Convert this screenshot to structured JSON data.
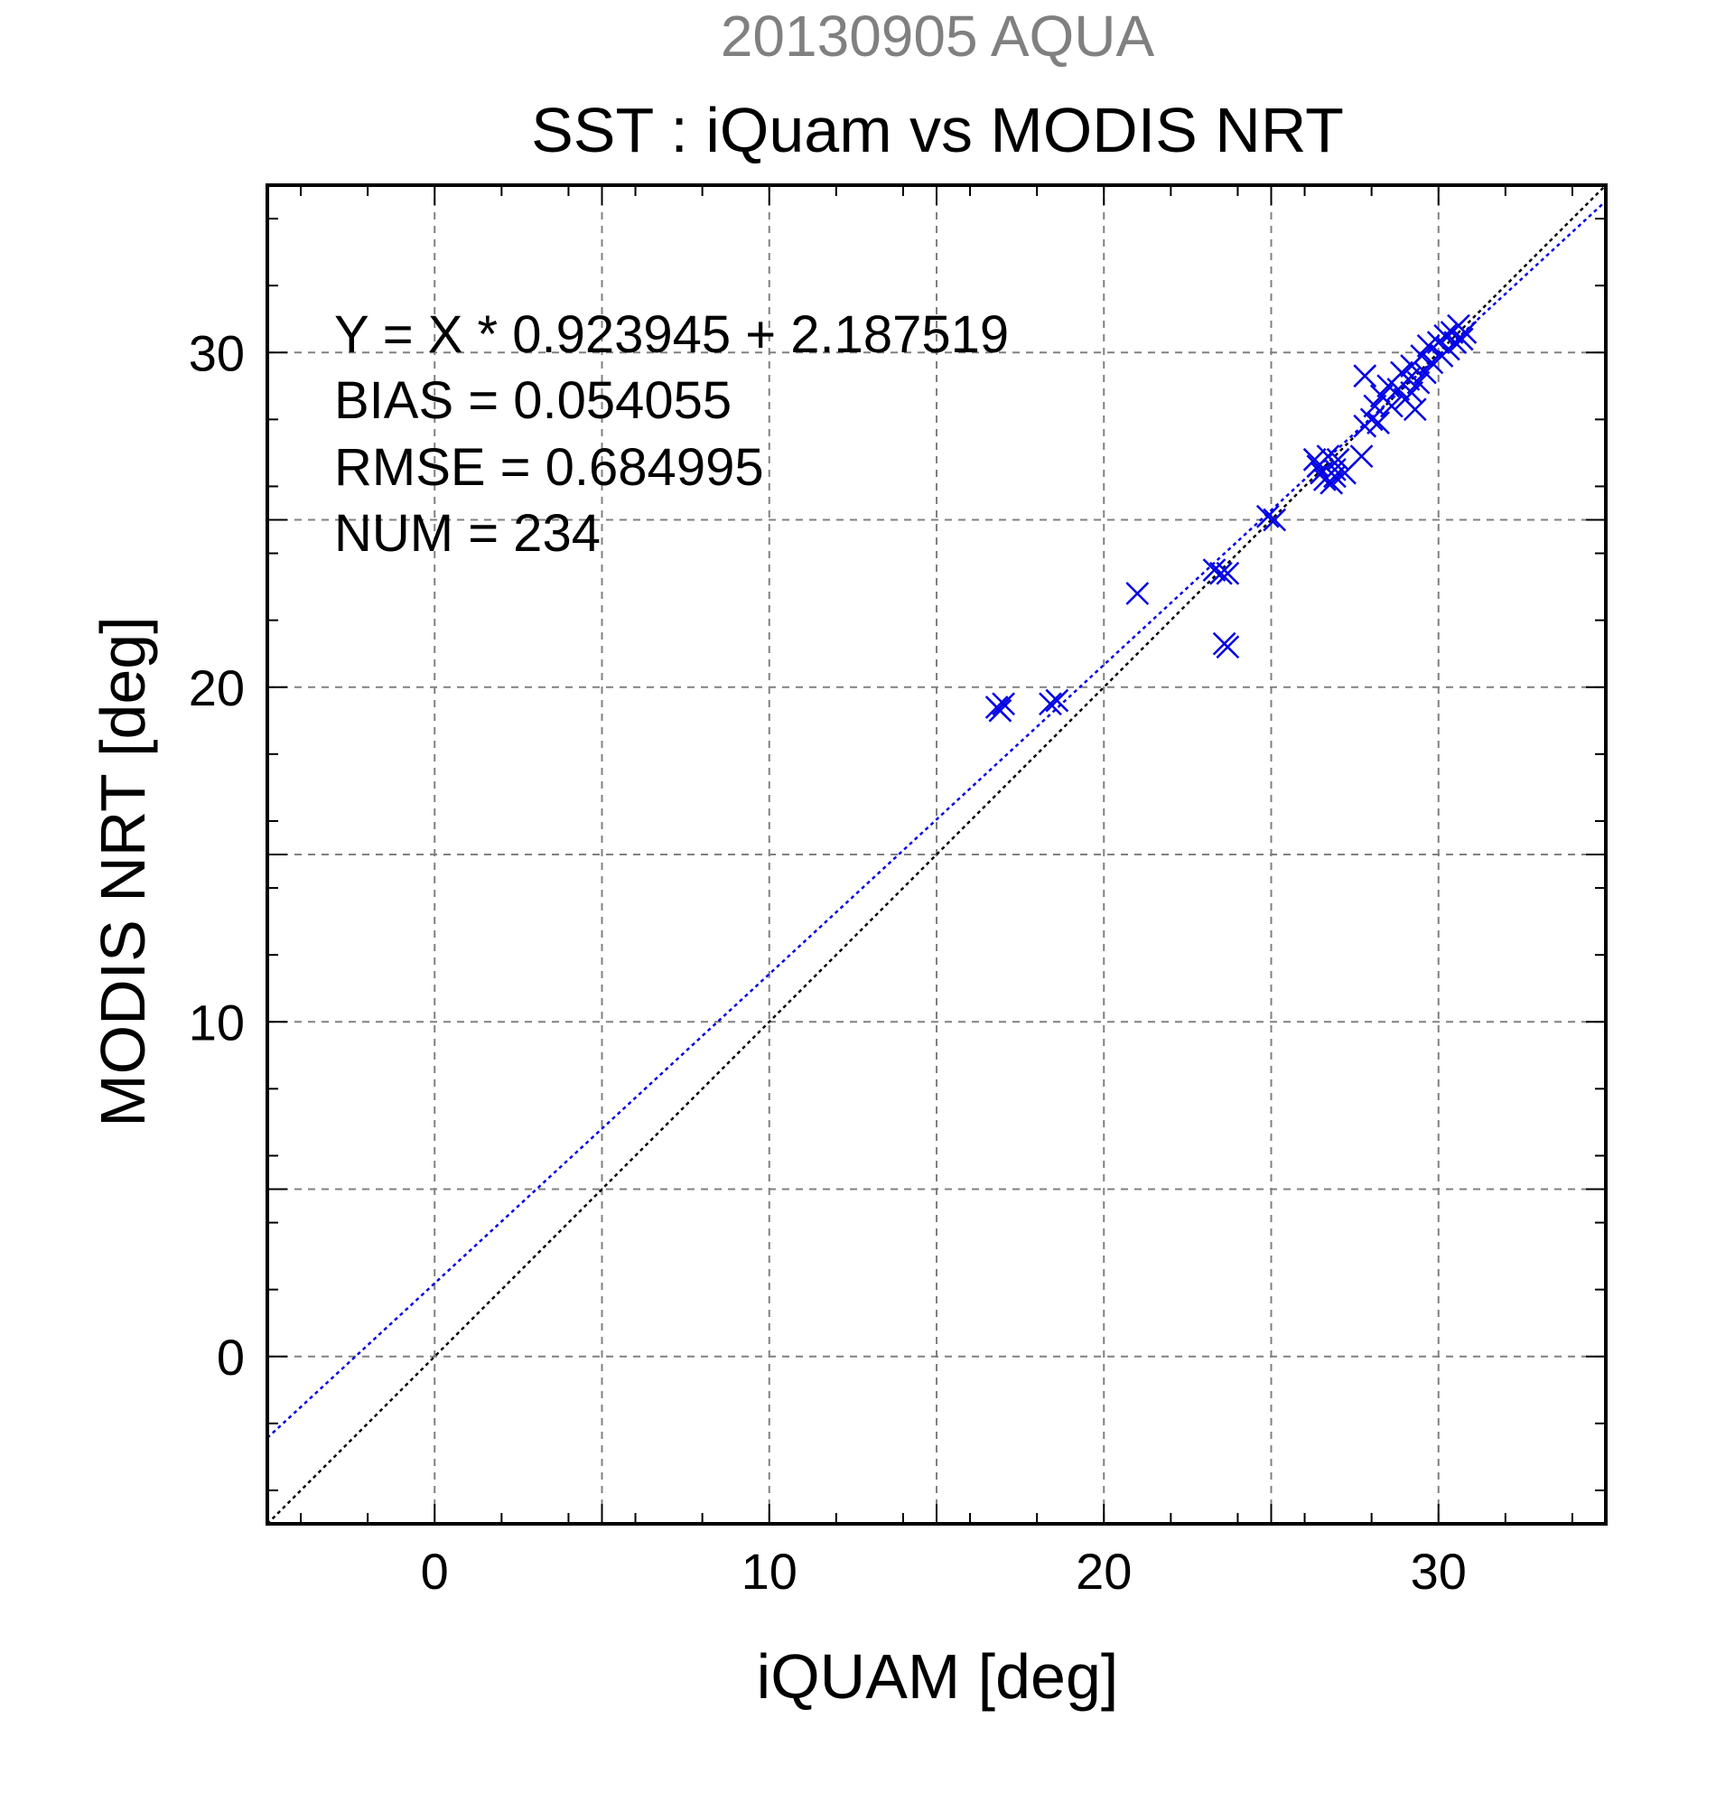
{
  "header": {
    "subtitle": "20130905 AQUA",
    "title": "SST : iQuam vs MODIS NRT"
  },
  "stats": {
    "line1": "Y = X * 0.923945 + 2.187519",
    "line2": "BIAS = 0.054055",
    "line3": "RMSE = 0.684995",
    "line4": "NUM = 234"
  },
  "colors": {
    "subtitle": "#808080",
    "points": "#0000e6",
    "fit_line": "#0000e6",
    "identity_line": "#000000",
    "grid": "#808080",
    "axis": "#000000"
  },
  "chart_data": {
    "type": "scatter",
    "title": "SST : iQuam vs MODIS NRT",
    "subtitle": "20130905 AQUA",
    "xlabel": "iQUAM [deg]",
    "ylabel": "MODIS NRT [deg]",
    "xlim": [
      -5,
      35
    ],
    "ylim": [
      -5,
      35
    ],
    "xticks": [
      0,
      10,
      20,
      30
    ],
    "yticks": [
      0,
      10,
      20,
      30
    ],
    "xtick_labels": [
      "0",
      "10",
      "20",
      "30"
    ],
    "ytick_labels": [
      "0",
      "10",
      "20",
      "30"
    ],
    "grid": true,
    "marker": "x",
    "fit_line": {
      "slope": 0.923945,
      "intercept": 2.187519,
      "style": "dotted",
      "color": "#0000e6"
    },
    "identity_line": {
      "slope": 1,
      "intercept": 0,
      "style": "dotted",
      "color": "#000000"
    },
    "points": [
      [
        16.8,
        19.4
      ],
      [
        17.0,
        19.5
      ],
      [
        16.9,
        19.3
      ],
      [
        18.4,
        19.5
      ],
      [
        18.6,
        19.6
      ],
      [
        21.0,
        22.8
      ],
      [
        23.3,
        23.5
      ],
      [
        23.5,
        23.4
      ],
      [
        23.7,
        23.4
      ],
      [
        23.6,
        21.3
      ],
      [
        23.7,
        21.2
      ],
      [
        24.9,
        25.1
      ],
      [
        25.1,
        25.0
      ],
      [
        26.3,
        26.8
      ],
      [
        26.5,
        26.4
      ],
      [
        26.7,
        26.9
      ],
      [
        26.6,
        26.2
      ],
      [
        26.9,
        26.5
      ],
      [
        27.0,
        26.8
      ],
      [
        27.2,
        26.4
      ],
      [
        26.8,
        26.1
      ],
      [
        26.4,
        26.6
      ],
      [
        26.9,
        26.3
      ],
      [
        27.7,
        26.9
      ],
      [
        27.8,
        29.3
      ],
      [
        27.8,
        27.8
      ],
      [
        28.0,
        28.0
      ],
      [
        28.2,
        27.9
      ],
      [
        28.1,
        28.4
      ],
      [
        28.3,
        28.7
      ],
      [
        28.5,
        29.0
      ],
      [
        28.6,
        28.4
      ],
      [
        28.8,
        28.9
      ],
      [
        28.9,
        29.4
      ],
      [
        29.0,
        28.6
      ],
      [
        29.1,
        29.2
      ],
      [
        29.2,
        28.8
      ],
      [
        29.3,
        28.3
      ],
      [
        29.2,
        29.6
      ],
      [
        29.4,
        29.1
      ],
      [
        29.5,
        29.9
      ],
      [
        29.6,
        29.4
      ],
      [
        29.7,
        30.2
      ],
      [
        29.8,
        29.7
      ],
      [
        30.0,
        30.3
      ],
      [
        30.1,
        29.9
      ],
      [
        30.2,
        30.5
      ],
      [
        30.3,
        30.1
      ],
      [
        30.4,
        30.6
      ],
      [
        30.5,
        30.3
      ],
      [
        30.6,
        30.8
      ],
      [
        30.7,
        30.4
      ],
      [
        30.8,
        30.6
      ]
    ]
  }
}
